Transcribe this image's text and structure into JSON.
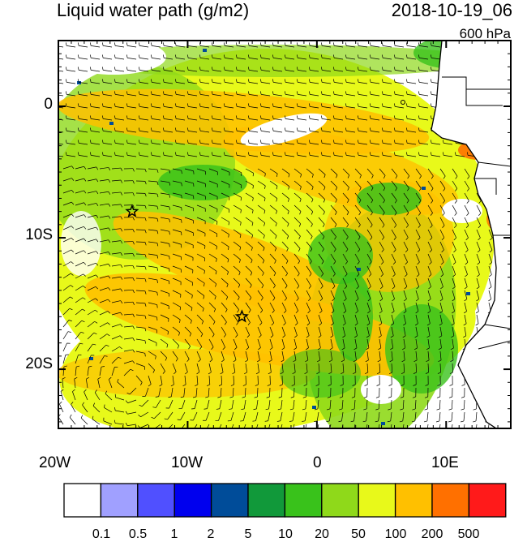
{
  "title": "Liquid water path (g/m2)",
  "datetime": "2018-10-19_06",
  "level": "600 hPa",
  "map": {
    "lon_range": [
      -20,
      15
    ],
    "lat_range": [
      -24.5,
      5
    ],
    "lon_ticks": [
      "20W",
      "10W",
      "0",
      "10E"
    ],
    "lat_ticks": [
      "0",
      "10S",
      "20S"
    ],
    "markers": [
      {
        "type": "star",
        "lon": -14.3,
        "lat": -8.0
      },
      {
        "type": "star",
        "lon": -5.8,
        "lat": -16.0
      }
    ]
  },
  "colorbar": {
    "colors": [
      "#ffffff",
      "#a0a0ff",
      "#5050ff",
      "#0000ee",
      "#004c99",
      "#11993a",
      "#39c21b",
      "#8fd91a",
      "#e8f91a",
      "#ffc000",
      "#ff7000",
      "#ff1a1a"
    ],
    "labels": [
      "0.1",
      "0.5",
      "1",
      "2",
      "5",
      "10",
      "20",
      "50",
      "100",
      "200",
      "500"
    ]
  }
}
